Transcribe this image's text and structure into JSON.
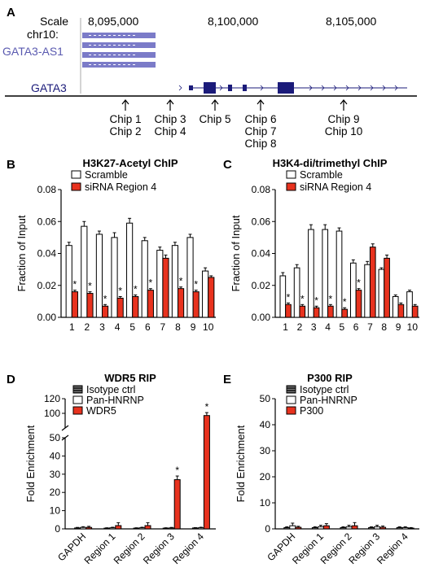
{
  "colors": {
    "scramble": "#ffffff",
    "sirna": "#e8321e",
    "isotype": "#2b2b2b",
    "track_blue": "#6f6fbf",
    "gene_dark": "#1b1b7a"
  },
  "browser": {
    "panel_label": "A",
    "scale_label": "Scale",
    "chrom_label": "chr10:",
    "positions": [
      "8,095,000",
      "8,100,000",
      "8,105,000"
    ],
    "antisense_gene": "GATA3-AS1",
    "gene": "GATA3",
    "chip_sites": [
      {
        "lines": [
          "Chip 1",
          "Chip 2"
        ]
      },
      {
        "lines": [
          "Chip 3",
          "Chip 4"
        ]
      },
      {
        "lines": [
          "Chip 5"
        ]
      },
      {
        "lines": [
          "Chip 6",
          "Chip 7",
          "Chip 8"
        ]
      },
      {
        "lines": [
          "Chip 9",
          "Chip 10"
        ]
      }
    ]
  },
  "chart_data": [
    {
      "panel": "B",
      "type": "bar",
      "title": "H3K27-Acetyl ChIP",
      "ylabel": "Fraction of Input",
      "ylim": [
        0,
        0.08
      ],
      "yticks": [
        "0.00",
        "0.02",
        "0.04",
        "0.06",
        "0.08"
      ],
      "categories": [
        "1",
        "2",
        "3",
        "4",
        "5",
        "6",
        "7",
        "8",
        "9",
        "10"
      ],
      "series": [
        {
          "name": "Scramble",
          "values": [
            0.045,
            0.057,
            0.052,
            0.05,
            0.059,
            0.048,
            0.042,
            0.045,
            0.05,
            0.029
          ],
          "errors": [
            0.002,
            0.003,
            0.002,
            0.003,
            0.003,
            0.002,
            0.002,
            0.002,
            0.002,
            0.002
          ]
        },
        {
          "name": "siRNA Region 4",
          "values": [
            0.016,
            0.015,
            0.007,
            0.012,
            0.013,
            0.017,
            0.037,
            0.018,
            0.016,
            0.025
          ],
          "errors": [
            0.001,
            0.001,
            0.001,
            0.001,
            0.001,
            0.001,
            0.002,
            0.001,
            0.001,
            0.001
          ]
        }
      ],
      "significance": [
        "*",
        "*",
        "*",
        "*",
        "*",
        "*",
        "",
        "*",
        "*",
        ""
      ],
      "legend": "top-left"
    },
    {
      "panel": "C",
      "type": "bar",
      "title": "H3K4-di/trimethyl ChIP",
      "ylabel": "Fraction of Input",
      "ylim": [
        0,
        0.08
      ],
      "yticks": [
        "0.00",
        "0.02",
        "0.04",
        "0.06",
        "0.08"
      ],
      "categories": [
        "1",
        "2",
        "3",
        "4",
        "5",
        "6",
        "7",
        "8",
        "9",
        "10"
      ],
      "series": [
        {
          "name": "Scramble",
          "values": [
            0.026,
            0.031,
            0.055,
            0.055,
            0.054,
            0.034,
            0.033,
            0.03,
            0.013,
            0.016
          ],
          "errors": [
            0.002,
            0.002,
            0.003,
            0.003,
            0.002,
            0.002,
            0.002,
            0.001,
            0.001,
            0.001
          ]
        },
        {
          "name": "siRNA Region 4",
          "values": [
            0.008,
            0.007,
            0.006,
            0.007,
            0.005,
            0.017,
            0.044,
            0.037,
            0.008,
            0.007
          ],
          "errors": [
            0.001,
            0.001,
            0.001,
            0.001,
            0.001,
            0.001,
            0.002,
            0.002,
            0.001,
            0.001
          ]
        }
      ],
      "significance": [
        "*",
        "*",
        "*",
        "*",
        "*",
        "*",
        "",
        "",
        "",
        ""
      ],
      "legend": "top-left"
    },
    {
      "panel": "D",
      "type": "bar",
      "title": "WDR5 RIP",
      "ylabel": "Fold Enrichment",
      "axis_break": [
        50,
        80
      ],
      "ylim": [
        0,
        120
      ],
      "yticks": [
        "0",
        "10",
        "20",
        "30",
        "40",
        "50",
        "100",
        "120"
      ],
      "categories": [
        "GAPDH",
        "Region 1",
        "Region 2",
        "Region 3",
        "Region 4"
      ],
      "series": [
        {
          "name": "Isotype ctrl",
          "values": [
            0.5,
            0.4,
            0.4,
            0.4,
            0.5
          ],
          "errors": [
            0.3,
            0.2,
            0.2,
            0.2,
            0.2
          ]
        },
        {
          "name": "Pan-HNRNP",
          "values": [
            0.8,
            0.6,
            0.6,
            0.5,
            0.6
          ],
          "errors": [
            0.4,
            0.3,
            0.3,
            0.3,
            0.3
          ]
        },
        {
          "name": "WDR5",
          "values": [
            0.8,
            1.8,
            1.8,
            27,
            97
          ],
          "errors": [
            0.6,
            1.6,
            1.6,
            2,
            4
          ]
        }
      ],
      "significance": [
        "",
        "",
        "",
        "*",
        "*"
      ],
      "legend": "top-left"
    },
    {
      "panel": "E",
      "type": "bar",
      "title": "P300 RIP",
      "ylabel": "Fold Enrichment",
      "ylim": [
        0,
        50
      ],
      "yticks": [
        "0",
        "10",
        "20",
        "30",
        "40",
        "50"
      ],
      "categories": [
        "GAPDH",
        "Region 1",
        "Region 2",
        "Region 3",
        "Region 4"
      ],
      "series": [
        {
          "name": "Isotype ctrl",
          "values": [
            0.5,
            0.5,
            0.5,
            0.5,
            0.5
          ],
          "errors": [
            0.3,
            0.3,
            0.3,
            0.3,
            0.3
          ]
        },
        {
          "name": "Pan-HNRNP",
          "values": [
            1.2,
            0.8,
            0.8,
            0.8,
            0.5
          ],
          "errors": [
            1.0,
            0.6,
            0.6,
            0.6,
            0.3
          ]
        },
        {
          "name": "P300",
          "values": [
            0.6,
            1.2,
            1.2,
            0.6,
            0.3
          ],
          "errors": [
            0.4,
            0.8,
            1.2,
            0.5,
            0.2
          ]
        }
      ],
      "significance": [
        "",
        "",
        "",
        "",
        ""
      ],
      "legend": "top-left"
    }
  ]
}
